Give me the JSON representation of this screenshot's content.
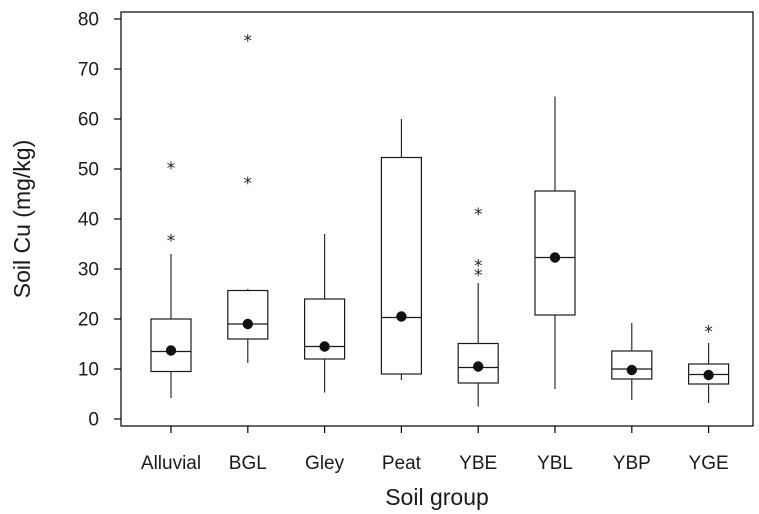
{
  "chart_data": {
    "type": "box",
    "xlabel": "Soil group",
    "ylabel": "Soil Cu (mg/kg)",
    "ylim": [
      -2,
      82
    ],
    "yticks": [
      0,
      10,
      20,
      30,
      40,
      50,
      60,
      70,
      80
    ],
    "categories": [
      "Alluvial",
      "BGL",
      "Gley",
      "Peat",
      "YBE",
      "YBL",
      "YBP",
      "YGE"
    ],
    "boxes": [
      {
        "category": "Alluvial",
        "whisker_low": 4.2,
        "q1": 9.5,
        "median": 13.5,
        "q3": 20,
        "whisker_high": 33,
        "mean": 13.7,
        "outliers": [
          36.2,
          50.7
        ]
      },
      {
        "category": "BGL",
        "whisker_low": 11.2,
        "q1": 16,
        "median": 19,
        "q3": 25.7,
        "whisker_high": 26,
        "mean": 19,
        "outliers": [
          47.7,
          76.2
        ]
      },
      {
        "category": "Gley",
        "whisker_low": 5.3,
        "q1": 12,
        "median": 14.5,
        "q3": 24,
        "whisker_high": 37,
        "mean": 14.5,
        "outliers": []
      },
      {
        "category": "Peat",
        "whisker_low": 7.8,
        "q1": 9,
        "median": 20.3,
        "q3": 52.3,
        "whisker_high": 60,
        "mean": 20.5,
        "outliers": []
      },
      {
        "category": "YBE",
        "whisker_low": 2.5,
        "q1": 7.2,
        "median": 10.3,
        "q3": 15.1,
        "whisker_high": 27.2,
        "mean": 10.5,
        "outliers": [
          29.3,
          31.2,
          41.5
        ]
      },
      {
        "category": "YBL",
        "whisker_low": 6,
        "q1": 20.8,
        "median": 32.3,
        "q3": 45.6,
        "whisker_high": 64.5,
        "mean": 32.3,
        "outliers": []
      },
      {
        "category": "YBP",
        "whisker_low": 3.8,
        "q1": 8,
        "median": 10,
        "q3": 13.6,
        "whisker_high": 19.2,
        "mean": 9.8,
        "outliers": []
      },
      {
        "category": "YGE",
        "whisker_low": 3.2,
        "q1": 7,
        "median": 8.9,
        "q3": 11,
        "whisker_high": 15.2,
        "mean": 8.8,
        "outliers": [
          18
        ]
      }
    ],
    "outlier_symbol": "*",
    "grid": false,
    "legend": false
  }
}
